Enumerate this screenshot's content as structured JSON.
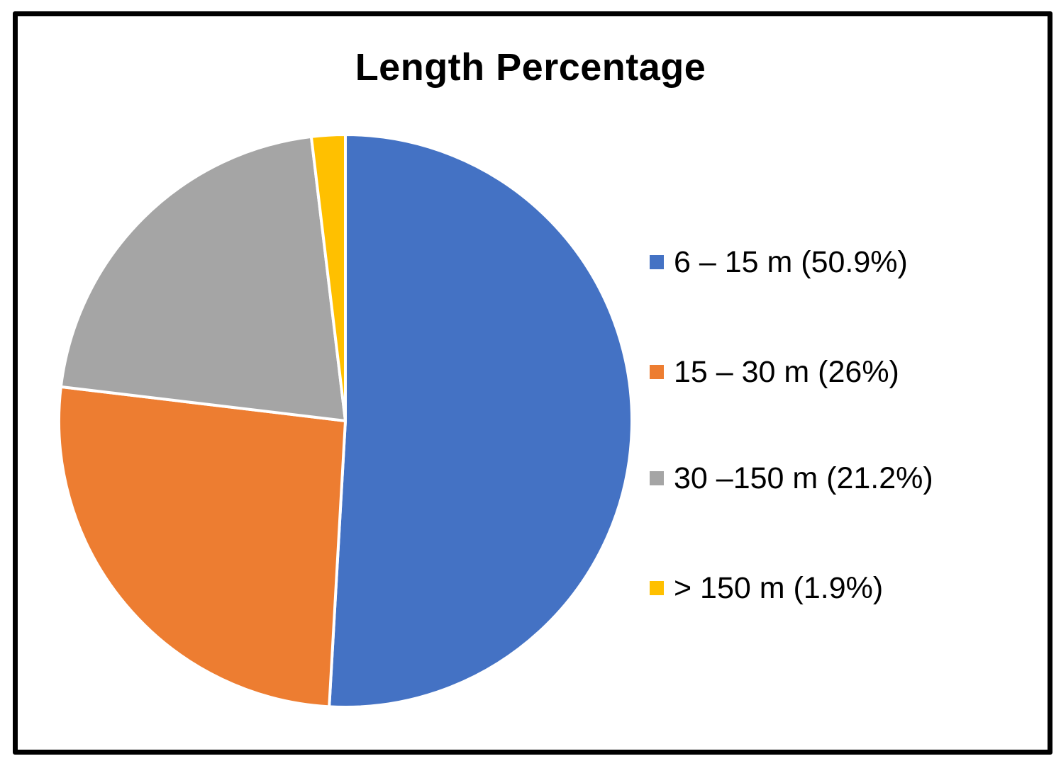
{
  "chart_data": {
    "type": "pie",
    "title": "Length Percentage",
    "categories": [
      "6 – 15 m",
      "15 – 30 m",
      "30 –150 m",
      "> 150 m"
    ],
    "values": [
      50.9,
      26,
      21.2,
      1.9
    ],
    "legend_labels": [
      "6 – 15 m (50.9%)",
      "15 – 30 m (26%)",
      "30 –150 m (21.2%)",
      "> 150 m (1.9%)"
    ],
    "colors": [
      "#4472C4",
      "#ED7D31",
      "#A5A5A5",
      "#FFC000"
    ],
    "legend_position": "right",
    "start": "12 o'clock, clockwise"
  }
}
